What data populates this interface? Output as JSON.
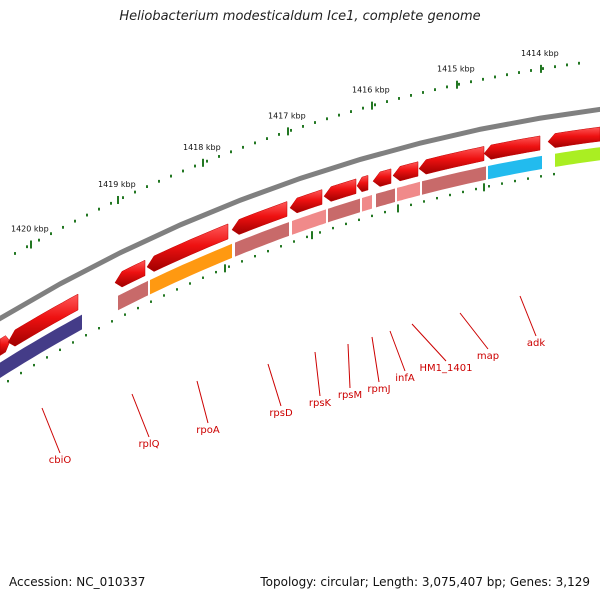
{
  "title": "Heliobacterium modesticaldum Ice1, complete genome",
  "footer": {
    "accession": "Accession: NC_010337",
    "summary": "Topology: circular; Length: 3,075,407 bp; Genes: 3,129"
  },
  "ruler_labels": [
    "1420 kbp",
    "1419 kbp",
    "1418 kbp",
    "1417 kbp",
    "1416 kbp",
    "1415 kbp",
    "1414 kbp"
  ],
  "gene_labels": [
    "cbiO",
    "rplQ",
    "rpoA",
    "rpsD",
    "rpsK",
    "rpsM",
    "rpmJ",
    "infA",
    "HM1_1401",
    "map",
    "adk"
  ],
  "colors": {
    "backbone": "#808080",
    "gene_arrow": "#ee1111",
    "cds_light": "#f08a8a",
    "cds_dark": "#c86a6a",
    "rpoA_bar": "#ff9911",
    "adk_bar": "#22bbee",
    "cbiO_bar": "#443c88",
    "right_bar": "#aaee22",
    "ticks": "#227722",
    "label_text": "#cc0000"
  }
}
